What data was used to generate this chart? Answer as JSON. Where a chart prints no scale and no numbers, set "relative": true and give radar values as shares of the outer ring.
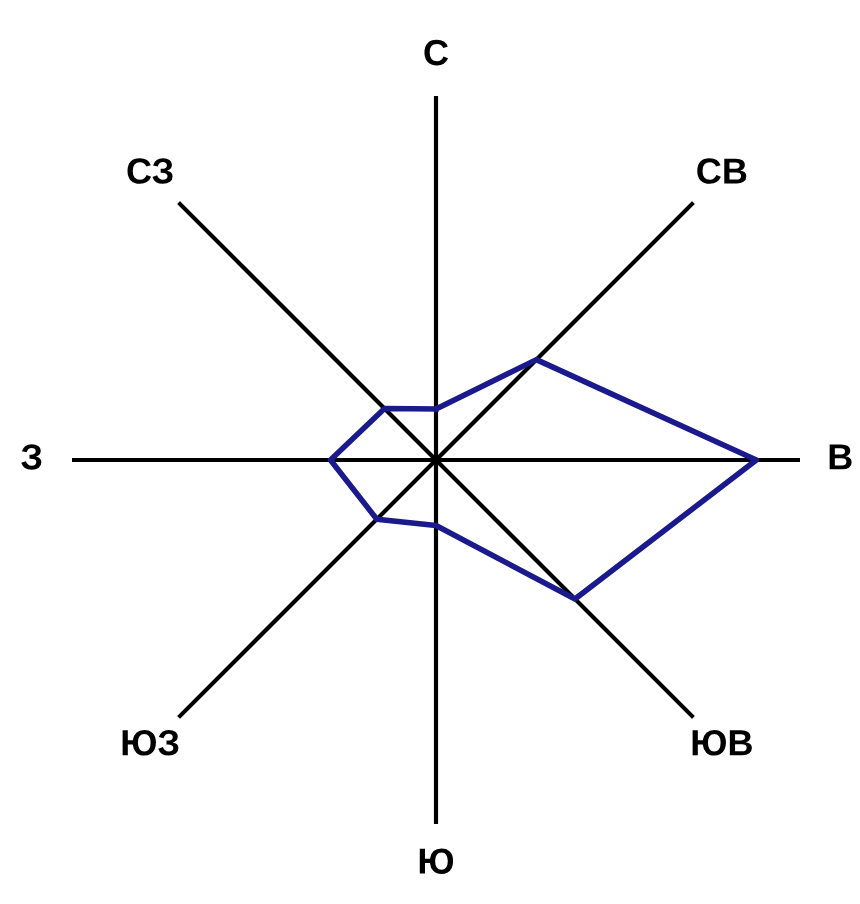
{
  "chart_data": {
    "type": "radar",
    "relative": true,
    "categories": [
      "С",
      "СВ",
      "В",
      "ЮВ",
      "Ю",
      "ЮЗ",
      "З",
      "СЗ"
    ],
    "series": [
      {
        "color": "#1a1a8c",
        "values": [
          0.14,
          0.39,
          0.88,
          0.54,
          0.18,
          0.23,
          0.29,
          0.2
        ]
      }
    ]
  }
}
